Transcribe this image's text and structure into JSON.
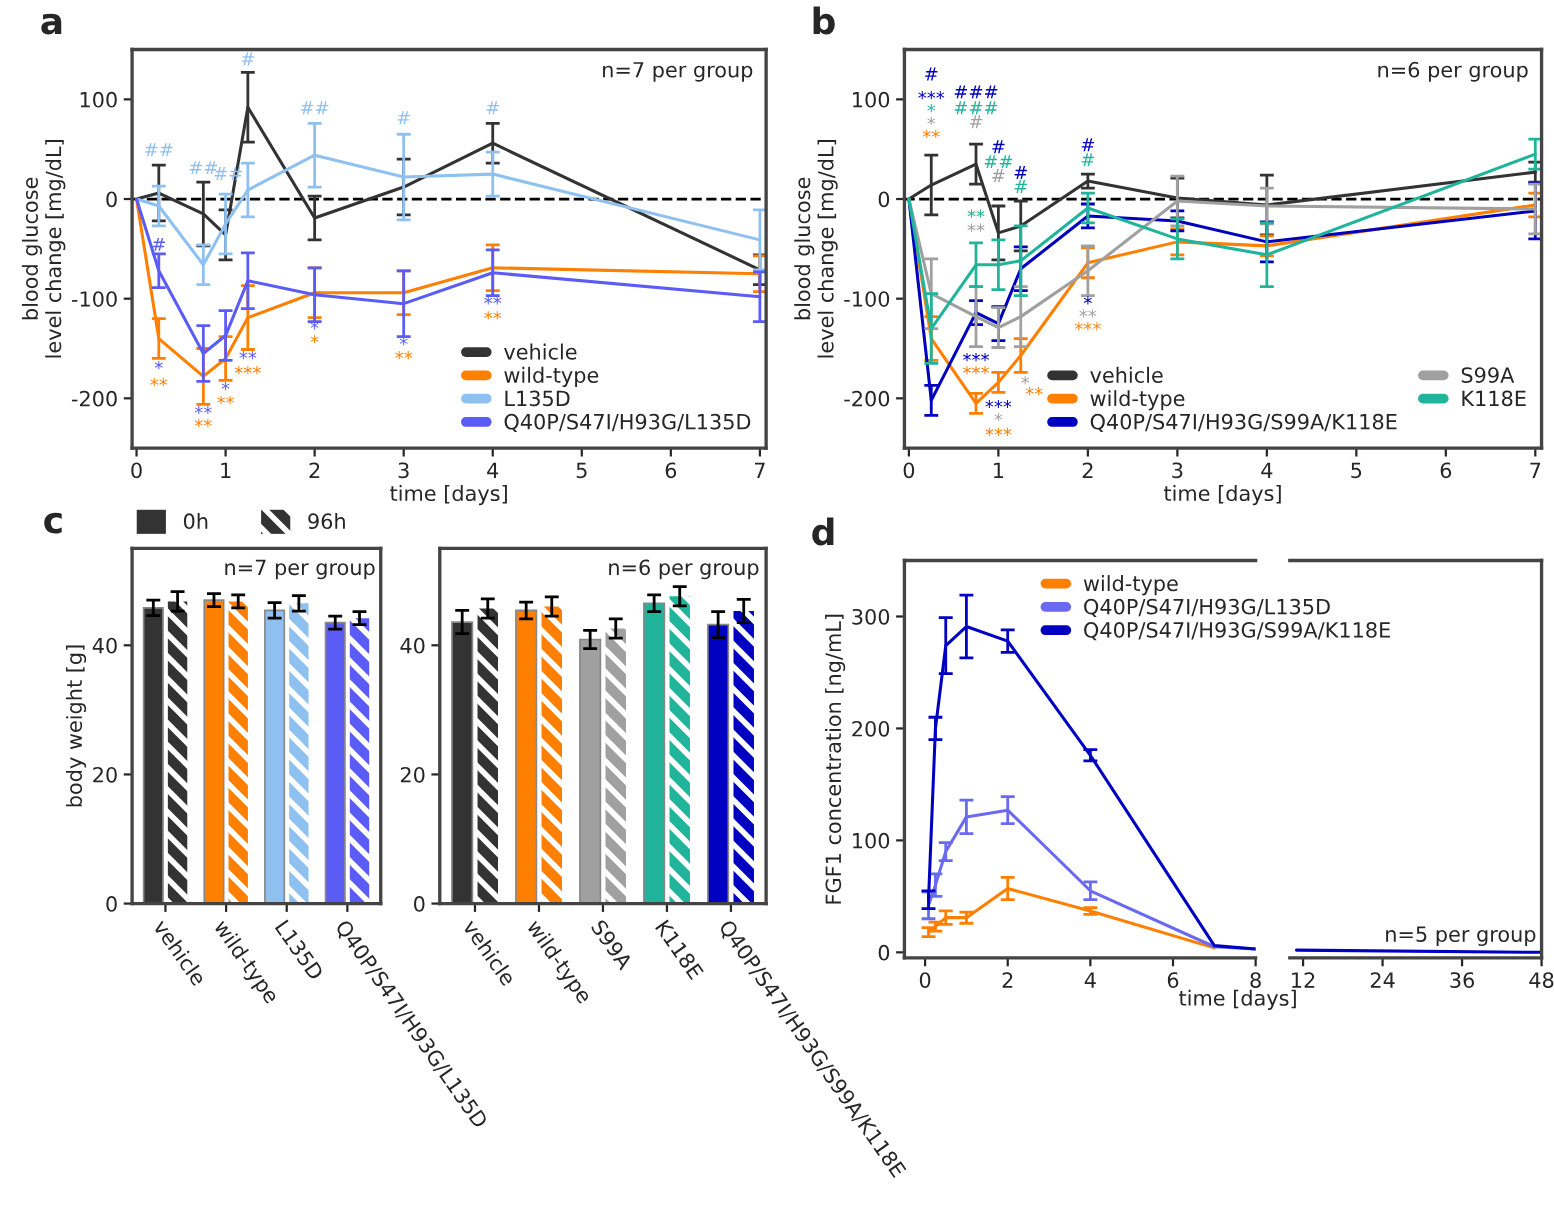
{
  "chart_data": [
    {
      "type": "line",
      "title": "a",
      "xlabel": "time [days]",
      "ylabel": "blood glucose\nlevel change [mg/dL]",
      "xlim": [
        -0.05,
        7.07
      ],
      "ylim": [
        -250,
        150
      ],
      "xticks": [
        0,
        1,
        2,
        3,
        4,
        5,
        6,
        7
      ],
      "yticks": [
        -200,
        -100,
        0,
        100
      ],
      "legend": "bottom right",
      "x": [
        0,
        0.25,
        0.75,
        1,
        1.25,
        2,
        3,
        4,
        7
      ],
      "ref_lines": [
        {
          "axis": "y",
          "value": 0,
          "color": "#000000",
          "line_style": "dashed"
        }
      ],
      "series": [
        {
          "name": "vehicle",
          "color": "#333333",
          "values": [
            0,
            6,
            -15,
            -36,
            92,
            -19,
            12,
            56,
            -71
          ],
          "errors": [
            null,
            28,
            32,
            25,
            35,
            22,
            28,
            20,
            15
          ]
        },
        {
          "name": "wild-type",
          "color": "#ff7f00",
          "values": [
            0,
            -140,
            -178,
            -160,
            -119,
            -94,
            -94,
            -69,
            -75
          ],
          "errors": [
            null,
            20,
            28,
            22,
            32,
            25,
            22,
            23,
            18
          ]
        },
        {
          "name": "L135D",
          "color": "#8fc1f0",
          "values": [
            0,
            -7,
            -66,
            -25,
            9,
            44,
            22,
            25,
            -41
          ],
          "errors": [
            null,
            20,
            20,
            30,
            27,
            32,
            43,
            22,
            30
          ]
        },
        {
          "name": "Q40P/S47I/H93G/L135D",
          "color": "#5b5bf5",
          "values": [
            0,
            -72,
            -155,
            -137,
            -82,
            -96,
            -105,
            -74,
            -98
          ],
          "errors": [
            null,
            17,
            28,
            25,
            28,
            27,
            33,
            23,
            25
          ]
        }
      ],
      "annotations": [
        "n=7 per group",
        "##",
        "#",
        "*",
        "**",
        "##",
        "**",
        "**",
        "##",
        "*",
        "**",
        "#",
        "**",
        "***",
        "##",
        "*",
        "*",
        "#",
        "*",
        "**",
        "#",
        "**",
        "**"
      ]
    },
    {
      "type": "line",
      "title": "b",
      "xlabel": "time [days]",
      "ylabel": "blood glucose\nlevel change [mg/dL]",
      "xlim": [
        -0.05,
        7.07
      ],
      "ylim": [
        -250,
        150
      ],
      "xticks": [
        0,
        1,
        2,
        3,
        4,
        5,
        6,
        7
      ],
      "yticks": [
        -200,
        -100,
        0,
        100
      ],
      "legend": "bottom right",
      "x": [
        0,
        0.25,
        0.75,
        1,
        1.25,
        2,
        3,
        4,
        7
      ],
      "ref_lines": [
        {
          "axis": "y",
          "value": 0,
          "color": "#000000",
          "line_style": "dashed"
        }
      ],
      "series": [
        {
          "name": "vehicle",
          "color": "#333333",
          "values": [
            0,
            14,
            35,
            -34,
            -27,
            18,
            1,
            -6,
            27
          ],
          "errors": [
            null,
            30,
            20,
            27,
            25,
            7,
            20,
            30,
            10
          ]
        },
        {
          "name": "wild-type",
          "color": "#ff7f00",
          "values": [
            0,
            -140,
            -205,
            -184,
            -157,
            -64,
            -43,
            -47,
            -6
          ],
          "errors": [
            null,
            22,
            10,
            10,
            17,
            15,
            13,
            10,
            12
          ]
        },
        {
          "name": "Q40P/S47I/H93G/S99A/K118E",
          "color": "#0000c0",
          "values": [
            0,
            -202,
            -114,
            -125,
            -70,
            -17,
            -22,
            -43,
            -12
          ],
          "errors": [
            null,
            15,
            12,
            17,
            22,
            12,
            10,
            20,
            28
          ]
        },
        {
          "name": "S99A",
          "color": "#a0a0a0",
          "values": [
            0,
            -95,
            -118,
            -129,
            -118,
            -72,
            -2,
            -7,
            -10
          ],
          "errors": [
            null,
            35,
            30,
            20,
            30,
            25,
            25,
            18,
            25
          ]
        },
        {
          "name": "K118E",
          "color": "#20b59a",
          "values": [
            0,
            -130,
            -66,
            -66,
            -62,
            -9,
            -40,
            -56,
            45
          ],
          "errors": [
            null,
            35,
            22,
            25,
            35,
            15,
            20,
            32,
            15
          ]
        }
      ],
      "annotations": [
        "n=6 per group",
        "#",
        "***",
        "*",
        "*",
        "**",
        "###",
        "###",
        "#",
        "**",
        "**",
        "***",
        "***",
        "#",
        "##",
        "#",
        "***",
        "*",
        "***",
        "#",
        "#",
        "*",
        "**",
        "#",
        "#",
        "*",
        "**",
        "***"
      ]
    },
    {
      "type": "bar",
      "title": "c",
      "ylabel": "body weight [g]",
      "ylim": [
        0,
        55
      ],
      "yticks": [
        0,
        20,
        40
      ],
      "legend": "top",
      "categories": [
        "vehicle",
        "wild-type",
        "L135D",
        "Q40P/S47I/H93G/L135D"
      ],
      "series": [
        {
          "name": "0h",
          "colors": [
            "#333333",
            "#ff7f00",
            "#8fc1f0",
            "#5b5bf5"
          ],
          "values": [
            45.8,
            47.0,
            45.4,
            43.5
          ],
          "errors": [
            1.2,
            1.0,
            1.2,
            1.0
          ]
        },
        {
          "name": "96h",
          "colors": [
            "#333333",
            "#ff7f00",
            "#8fc1f0",
            "#5b5bf5"
          ],
          "values": [
            46.8,
            46.8,
            46.5,
            44.2
          ],
          "errors": [
            1.5,
            1.0,
            1.2,
            1.0
          ]
        }
      ],
      "annotations": [
        "n=7 per group"
      ]
    },
    {
      "type": "bar",
      "ylim": [
        0,
        55
      ],
      "yticks": [
        0,
        20,
        40
      ],
      "categories": [
        "vehicle",
        "wild-type",
        "S99A",
        "K118E",
        "Q40P/S47I/H93G/S99A/K118E"
      ],
      "series": [
        {
          "colors": [
            "#333333",
            "#ff7f00",
            "#a0a0a0",
            "#20b59a",
            "#0000c0"
          ],
          "values": [
            43.6,
            45.4,
            40.9,
            46.5,
            43.2
          ],
          "errors": [
            1.8,
            1.3,
            1.4,
            1.3,
            2.0
          ]
        },
        {
          "colors": [
            "#333333",
            "#ff7f00",
            "#a0a0a0",
            "#20b59a",
            "#0000c0"
          ],
          "values": [
            45.7,
            46.0,
            42.6,
            47.6,
            45.3
          ],
          "errors": [
            1.5,
            1.5,
            1.5,
            1.5,
            1.8
          ]
        }
      ],
      "annotations": [
        "n=6 per group"
      ]
    },
    {
      "type": "line",
      "title": "d",
      "xlabel": "time [days]",
      "ylabel": "FGF1 concentration [ng/mL]",
      "xlim": [
        -0.5,
        8
      ],
      "ylim": [
        -5,
        350
      ],
      "xticks": [
        0,
        2,
        4,
        6,
        8
      ],
      "yticks": [
        0,
        100,
        200,
        300
      ],
      "legend": "top",
      "series": [
        {
          "name": "wild-type",
          "color": "#ff7f00",
          "x": [
            0.083,
            0.25,
            0.5,
            1,
            2,
            4,
            7
          ],
          "values": [
            18,
            23,
            31,
            31,
            57,
            37,
            4
          ],
          "errors": [
            4,
            4,
            6,
            5,
            10,
            3,
            null
          ]
        },
        {
          "name": "Q40P/S47I/H93G/L135D",
          "color": "#6a6af0",
          "x": [
            0.083,
            0.25,
            0.5,
            1,
            2,
            4,
            7,
            8
          ],
          "values": [
            42,
            60,
            90,
            121,
            127,
            55,
            5,
            3
          ],
          "errors": [
            12,
            10,
            8,
            15,
            12,
            8,
            null,
            null
          ]
        },
        {
          "name": "Q40P/S47I/H93G/S99A/K118E",
          "color": "#0000c0",
          "x": [
            0.083,
            0.25,
            0.5,
            1,
            2,
            4,
            7,
            8
          ],
          "values": [
            47,
            200,
            274,
            291,
            278,
            176,
            6,
            3
          ],
          "errors": [
            8,
            10,
            25,
            28,
            10,
            5,
            null,
            null
          ]
        }
      ]
    },
    {
      "type": "line",
      "xlim": [
        10,
        48
      ],
      "ylim": [
        -5,
        350
      ],
      "xticks": [
        12,
        24,
        36,
        48
      ],
      "tick_labels": "x",
      "series": [
        {
          "color": "#0000c0",
          "x": [
            11,
            48
          ],
          "values": [
            2,
            0
          ]
        }
      ],
      "annotations": [
        "n=5 per group"
      ]
    }
  ]
}
